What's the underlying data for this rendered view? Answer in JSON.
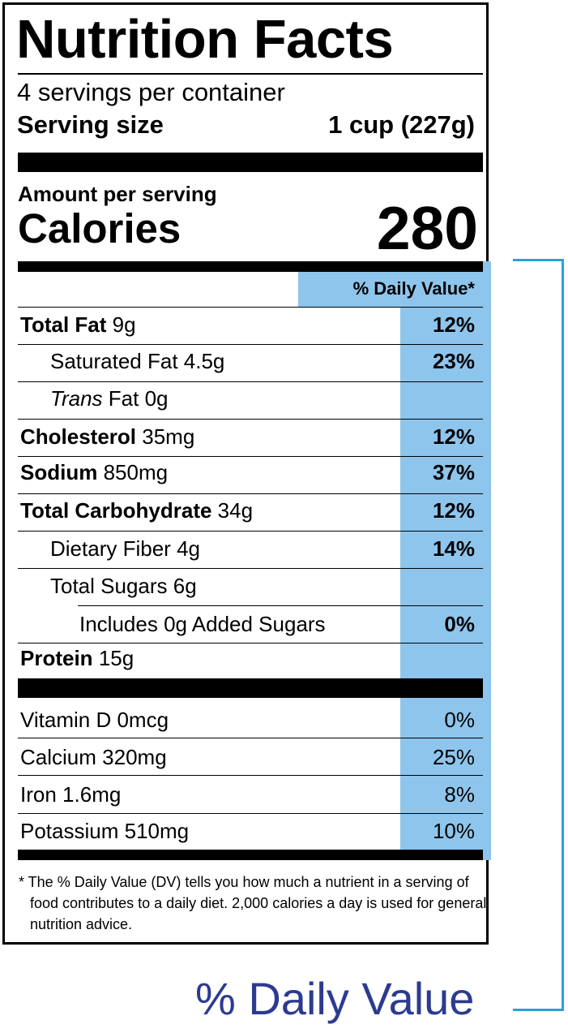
{
  "title": "Nutrition Facts",
  "servings_per_container": "4 servings per container",
  "serving_size_label": "Serving size",
  "serving_size_value": "1 cup (227g)",
  "amount_per_serving": "Amount per serving",
  "calories_label": "Calories",
  "calories_value": "280",
  "dv_header": "% Daily Value*",
  "nutrients": [
    {
      "name": "Total Fat",
      "amount": "9g",
      "dv": "12%"
    },
    {
      "name": "Saturated Fat",
      "amount": "4.5g",
      "dv": "23%"
    },
    {
      "name": "Trans",
      "name_rest": "Fat",
      "amount": "0g",
      "dv": ""
    },
    {
      "name": "Cholesterol",
      "amount": "35mg",
      "dv": "12%"
    },
    {
      "name": "Sodium",
      "amount": "850mg",
      "dv": "37%"
    },
    {
      "name": "Total Carbohydrate",
      "amount": "34g",
      "dv": "12%"
    },
    {
      "name": "Dietary Fiber",
      "amount": "4g",
      "dv": "14%"
    },
    {
      "name": "Total Sugars",
      "amount": "6g",
      "dv": ""
    },
    {
      "name": "Includes 0g Added Sugars",
      "amount": "",
      "dv": "0%"
    },
    {
      "name": "Protein",
      "amount": "15g",
      "dv": ""
    }
  ],
  "vitamins": [
    {
      "name": "Vitamin D",
      "amount": "0mcg",
      "dv": "0%"
    },
    {
      "name": "Calcium",
      "amount": "320mg",
      "dv": "25%"
    },
    {
      "name": "Iron",
      "amount": "1.6mg",
      "dv": "8%"
    },
    {
      "name": "Potassium",
      "amount": "510mg",
      "dv": "10%"
    }
  ],
  "footnote": "* The % Daily Value (DV) tells you how much a nutrient in a serving of food contributes to a daily diet. 2,000 calories a day is used for general nutrition advice.",
  "callout_label": "% Daily Value",
  "colors": {
    "highlight": "#8ec5ec",
    "bracket": "#2e9fdc",
    "callout_text": "#2c3b8f"
  }
}
